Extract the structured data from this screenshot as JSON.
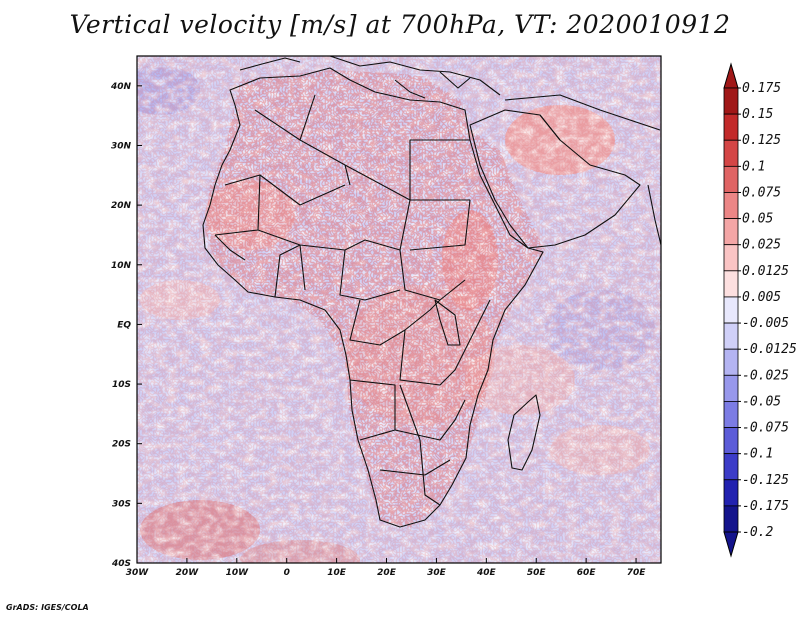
{
  "title": "Vertical velocity [m/s] at 700hPa, VT: 2020010912",
  "credit": "GrADS: IGES/COLA",
  "chart_data": {
    "type": "heatmap",
    "title": "Vertical velocity [m/s] at 700hPa, VT: 2020010912",
    "variable": "Vertical velocity",
    "units": "m/s",
    "level": "700hPa",
    "valid_time": "2020010912",
    "x_axis": {
      "range": [
        -30,
        75
      ],
      "ticks": [
        {
          "value": -30,
          "label": "30W"
        },
        {
          "value": -20,
          "label": "20W"
        },
        {
          "value": -10,
          "label": "10W"
        },
        {
          "value": 0,
          "label": "0"
        },
        {
          "value": 10,
          "label": "10E"
        },
        {
          "value": 20,
          "label": "20E"
        },
        {
          "value": 30,
          "label": "30E"
        },
        {
          "value": 40,
          "label": "40E"
        },
        {
          "value": 50,
          "label": "50E"
        },
        {
          "value": 60,
          "label": "60E"
        },
        {
          "value": 70,
          "label": "70E"
        }
      ]
    },
    "y_axis": {
      "range": [
        -40,
        45
      ],
      "ticks": [
        {
          "value": 40,
          "label": "40N"
        },
        {
          "value": 30,
          "label": "30N"
        },
        {
          "value": 20,
          "label": "20N"
        },
        {
          "value": 10,
          "label": "10N"
        },
        {
          "value": 0,
          "label": "EQ"
        },
        {
          "value": -10,
          "label": "10S"
        },
        {
          "value": -20,
          "label": "20S"
        },
        {
          "value": -30,
          "label": "30S"
        },
        {
          "value": -40,
          "label": "40S"
        }
      ]
    },
    "colorbar": [
      {
        "label": "0.175",
        "color": "#a01818"
      },
      {
        "label": "0.15",
        "color": "#c22a2a"
      },
      {
        "label": "0.125",
        "color": "#d44646"
      },
      {
        "label": "0.1",
        "color": "#e06464"
      },
      {
        "label": "0.075",
        "color": "#ec8686"
      },
      {
        "label": "0.05",
        "color": "#f4a6a6"
      },
      {
        "label": "0.025",
        "color": "#fac4c4"
      },
      {
        "label": "0.0125",
        "color": "#fde0e0"
      },
      {
        "label": "0.005",
        "color": "#ffffff"
      },
      {
        "label": "-0.005",
        "color": "#e8e8fc"
      },
      {
        "label": "-0.0125",
        "color": "#d0d0f8"
      },
      {
        "label": "-0.025",
        "color": "#b4b4f2"
      },
      {
        "label": "-0.05",
        "color": "#9898ec"
      },
      {
        "label": "-0.075",
        "color": "#7c7ce4"
      },
      {
        "label": "-0.1",
        "color": "#5c5cd8"
      },
      {
        "label": "-0.125",
        "color": "#3c3cc8"
      },
      {
        "label": "-0.175",
        "color": "#2222b0"
      },
      {
        "label": "-0.2",
        "color": "#14148c"
      }
    ]
  }
}
